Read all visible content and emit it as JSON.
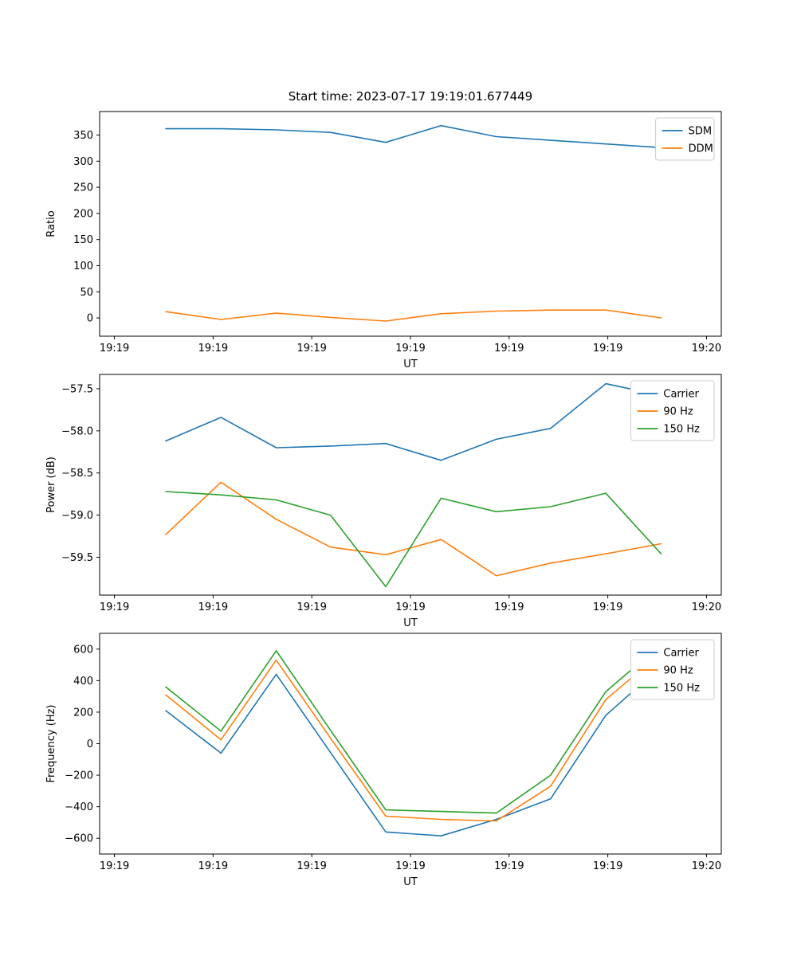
{
  "figure": {
    "title": "Start time: 2023-07-17 19:19:01.677449",
    "background": "#ffffff",
    "palette": {
      "blue": "#1f77b4",
      "orange": "#ff7f0e",
      "green": "#2ca02c"
    }
  },
  "chart_data": [
    {
      "type": "line",
      "name": "ratio",
      "xlabel": "UT",
      "ylabel": "Ratio",
      "x": [
        5.2,
        10.8,
        16.4,
        21.9,
        27.5,
        33.1,
        38.7,
        44.2,
        49.8,
        55.4
      ],
      "xlim": [
        -1.5,
        61.5
      ],
      "ylim": [
        -35,
        395
      ],
      "xtick_values": [
        0,
        10,
        20,
        30,
        40,
        50,
        60
      ],
      "xtick_labels": [
        "19:19",
        "19:19",
        "19:19",
        "19:19",
        "19:19",
        "19:19",
        "19:20"
      ],
      "ytick_values": [
        0,
        50,
        100,
        150,
        200,
        250,
        300,
        350
      ],
      "ytick_labels": [
        "0",
        "50",
        "100",
        "150",
        "200",
        "250",
        "300",
        "350"
      ],
      "grid": false,
      "legend_position": "top-right",
      "series": [
        {
          "name": "SDM",
          "color": "#1f77b4",
          "values": [
            362,
            362,
            360,
            355,
            336,
            368,
            347,
            340,
            333,
            326
          ]
        },
        {
          "name": "DDM",
          "color": "#ff7f0e",
          "values": [
            12,
            -3,
            9,
            1,
            -6,
            8,
            13,
            15,
            15,
            0
          ]
        }
      ]
    },
    {
      "type": "line",
      "name": "power",
      "xlabel": "UT",
      "ylabel": "Power (dB)",
      "x": [
        5.2,
        10.8,
        16.4,
        21.9,
        27.5,
        33.1,
        38.7,
        44.2,
        49.8,
        55.4
      ],
      "xlim": [
        -1.5,
        61.5
      ],
      "ylim": [
        -59.95,
        -57.33
      ],
      "xtick_values": [
        0,
        10,
        20,
        30,
        40,
        50,
        60
      ],
      "xtick_labels": [
        "19:19",
        "19:19",
        "19:19",
        "19:19",
        "19:19",
        "19:19",
        "19:20"
      ],
      "ytick_values": [
        -57.5,
        -58.0,
        -58.5,
        -59.0,
        -59.5
      ],
      "ytick_labels": [
        "−57.5",
        "−58.0",
        "−58.5",
        "−59.0",
        "−59.5"
      ],
      "grid": false,
      "legend_position": "top-right",
      "series": [
        {
          "name": "Carrier",
          "color": "#1f77b4",
          "values": [
            -58.12,
            -57.84,
            -58.2,
            -58.18,
            -58.15,
            -58.35,
            -58.1,
            -57.97,
            -57.44,
            -57.58
          ]
        },
        {
          "name": "90 Hz",
          "color": "#ff7f0e",
          "values": [
            -59.23,
            -58.61,
            -59.05,
            -59.38,
            -59.47,
            -59.29,
            -59.72,
            -59.57,
            -59.46,
            -59.34
          ]
        },
        {
          "name": "150 Hz",
          "color": "#2ca02c",
          "values": [
            -58.72,
            -58.76,
            -58.82,
            -59.0,
            -59.85,
            -58.8,
            -58.96,
            -58.9,
            -58.74,
            -59.46
          ]
        }
      ]
    },
    {
      "type": "line",
      "name": "frequency",
      "xlabel": "UT",
      "ylabel": "Frequency (Hz)",
      "x": [
        5.2,
        10.8,
        16.4,
        21.9,
        27.5,
        33.1,
        38.7,
        44.2,
        49.8,
        55.4
      ],
      "xlim": [
        -1.5,
        61.5
      ],
      "ylim": [
        -700,
        700
      ],
      "xtick_values": [
        0,
        10,
        20,
        30,
        40,
        50,
        60
      ],
      "xtick_labels": [
        "19:19",
        "19:19",
        "19:19",
        "19:19",
        "19:19",
        "19:19",
        "19:20"
      ],
      "ytick_values": [
        600,
        400,
        200,
        0,
        -200,
        -400,
        -600
      ],
      "ytick_labels": [
        "600",
        "400",
        "200",
        "0",
        "−200",
        "−400",
        "−600"
      ],
      "grid": false,
      "legend_position": "top-right",
      "series": [
        {
          "name": "Carrier",
          "color": "#1f77b4",
          "values": [
            210,
            -60,
            440,
            -56,
            -560,
            -585,
            -480,
            -350,
            180,
            490
          ]
        },
        {
          "name": "90 Hz",
          "color": "#ff7f0e",
          "values": [
            310,
            25,
            530,
            35,
            -460,
            -480,
            -490,
            -270,
            280,
            575
          ]
        },
        {
          "name": "150 Hz",
          "color": "#2ca02c",
          "values": [
            360,
            80,
            590,
            85,
            -420,
            -430,
            -440,
            -200,
            330,
            630
          ]
        }
      ]
    }
  ]
}
